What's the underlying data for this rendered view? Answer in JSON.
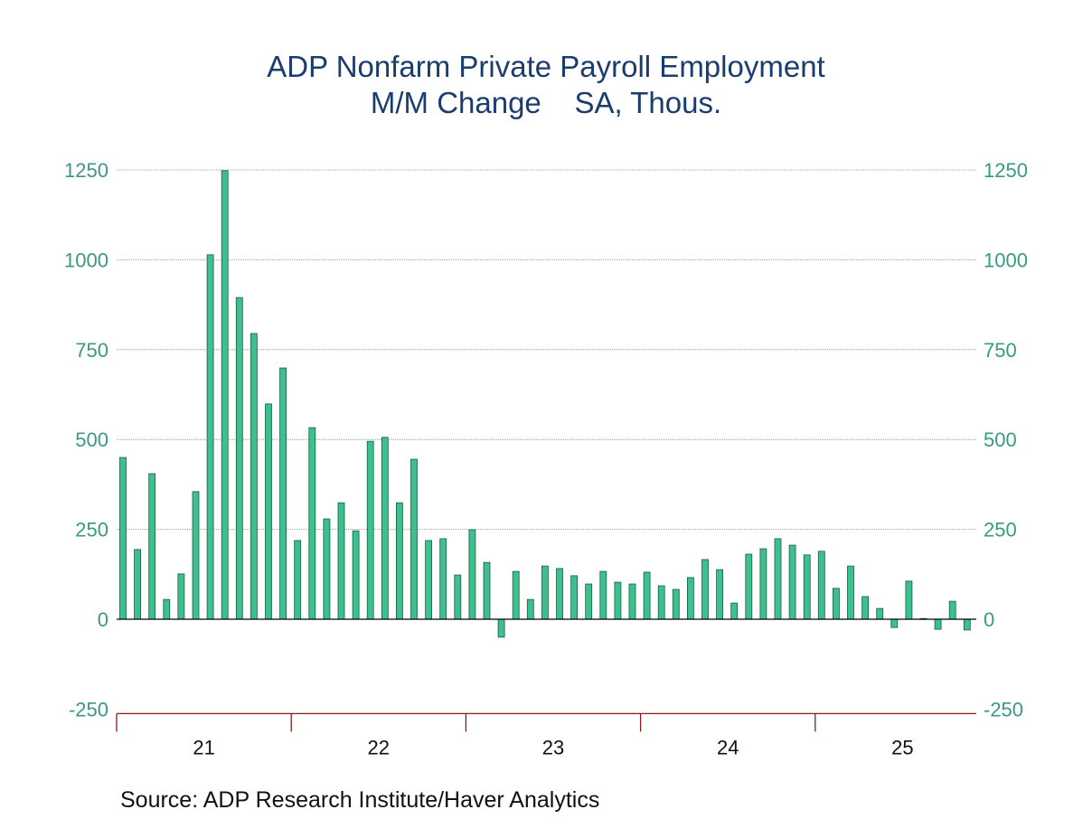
{
  "chart_data": {
    "type": "bar",
    "title": "ADP Nonfarm Private Payroll Employment",
    "subtitle": "M/M Change    SA, Thous.",
    "source": "Source:  ADP Research Institute/Haver Analytics",
    "frequency": "monthly",
    "start": "2021-01",
    "x_tick_labels": [
      "21",
      "22",
      "23",
      "24",
      "25"
    ],
    "y_ticks": [
      -250,
      0,
      250,
      500,
      750,
      1000,
      1250
    ],
    "ylim": [
      -250,
      1250
    ],
    "grid": true,
    "axes": "left and right",
    "values": [
      450,
      194,
      405,
      55,
      126,
      355,
      1014,
      1248,
      895,
      795,
      599,
      699,
      219,
      533,
      279,
      324,
      246,
      495,
      506,
      324,
      445,
      219,
      224,
      123,
      249,
      158,
      -50,
      133,
      55,
      148,
      141,
      121,
      98,
      133,
      103,
      98,
      131,
      93,
      83,
      116,
      166,
      138,
      45,
      181,
      196,
      224,
      206,
      179,
      189,
      86,
      148,
      63,
      30,
      -23,
      106,
      2,
      -28,
      50,
      -30
    ],
    "colors": {
      "bar": "#3cc08e",
      "bar_outline": "#1d5a44",
      "title": "#1b3d6e",
      "tick_labels": "#3a9a80",
      "grid": "#3aa8a0",
      "x_axis": "#8b1a1a"
    }
  }
}
